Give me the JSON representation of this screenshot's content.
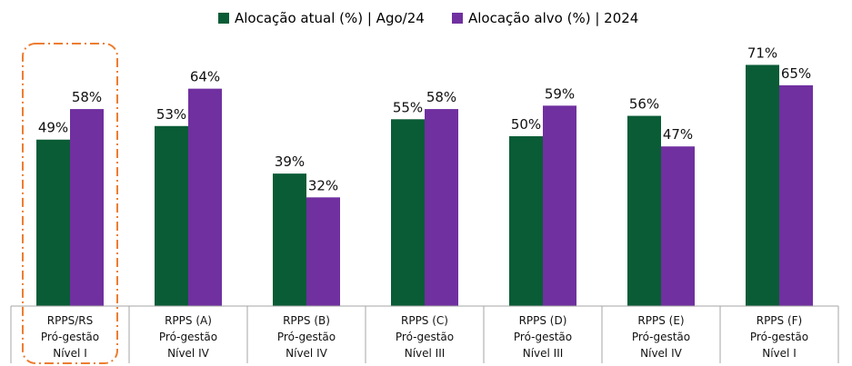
{
  "chart_data": {
    "type": "bar",
    "categories": [
      [
        "RPPS/RS",
        "Pró-gestão",
        "Nível I"
      ],
      [
        "RPPS (A)",
        "Pró-gestão",
        "Nível IV"
      ],
      [
        "RPPS (B)",
        "Pró-gestão",
        "Nível IV"
      ],
      [
        "RPPS (C)",
        "Pró-gestão",
        "Nível III"
      ],
      [
        "RPPS (D)",
        "Pró-gestão",
        "Nível III"
      ],
      [
        "RPPS (E)",
        "Pró-gestão",
        "Nível IV"
      ],
      [
        "RPPS (F)",
        "Pró-gestão",
        "Nível I"
      ]
    ],
    "series": [
      {
        "name": "Alocação atual (%) | Ago/24",
        "color": "#0A5C36",
        "values": [
          49,
          53,
          39,
          55,
          50,
          56,
          71
        ],
        "labels": [
          "49%",
          "53%",
          "39%",
          "55%",
          "50%",
          "56%",
          "71%"
        ]
      },
      {
        "name": "Alocação alvo (%) | 2024",
        "color": "#7030A0",
        "values": [
          58,
          64,
          32,
          58,
          59,
          47,
          65
        ],
        "labels": [
          "58%",
          "64%",
          "32%",
          "58%",
          "59%",
          "47%",
          "65%"
        ]
      }
    ],
    "ylim": [
      0,
      100
    ],
    "grid": false,
    "legend_position": "top-center",
    "highlight": {
      "category_index": 0,
      "style": "dash-dot rounded box",
      "color": "#ED7D31"
    },
    "axis_color": "#A6A6A6"
  }
}
